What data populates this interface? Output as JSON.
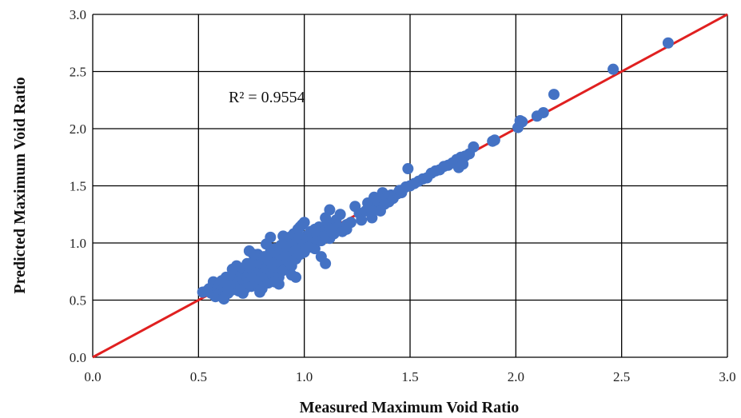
{
  "chart_data": {
    "type": "scatter",
    "xlabel": "Measured Maximum Void Ratio",
    "ylabel": "Predicted Maximum Void Ratio",
    "xlim": [
      0,
      3.0
    ],
    "ylim": [
      0,
      3.0
    ],
    "x_ticks": [
      "0.0",
      "0.5",
      "1.0",
      "1.5",
      "2.0",
      "2.5",
      "3.0"
    ],
    "y_ticks": [
      "0.0",
      "0.5",
      "1.0",
      "1.5",
      "2.0",
      "2.5",
      "3.0"
    ],
    "grid": true,
    "annotation": "R² = 0.9554",
    "reference_line": {
      "x": [
        0,
        3.0
      ],
      "y": [
        0,
        3.0
      ],
      "color": "#e02020"
    },
    "marker_color": "#4472c4",
    "series": [
      {
        "points": [
          [
            0.52,
            0.57
          ],
          [
            0.54,
            0.58
          ],
          [
            0.55,
            0.6
          ],
          [
            0.56,
            0.56
          ],
          [
            0.57,
            0.62
          ],
          [
            0.57,
            0.66
          ],
          [
            0.58,
            0.53
          ],
          [
            0.59,
            0.6
          ],
          [
            0.6,
            0.56
          ],
          [
            0.6,
            0.64
          ],
          [
            0.61,
            0.58
          ],
          [
            0.61,
            0.67
          ],
          [
            0.62,
            0.61
          ],
          [
            0.62,
            0.53
          ],
          [
            0.63,
            0.65
          ],
          [
            0.63,
            0.7
          ],
          [
            0.64,
            0.6
          ],
          [
            0.64,
            0.56
          ],
          [
            0.65,
            0.68
          ],
          [
            0.65,
            0.63
          ],
          [
            0.66,
            0.72
          ],
          [
            0.66,
            0.59
          ],
          [
            0.67,
            0.65
          ],
          [
            0.67,
            0.75
          ],
          [
            0.68,
            0.62
          ],
          [
            0.68,
            0.7
          ],
          [
            0.69,
            0.58
          ],
          [
            0.69,
            0.66
          ],
          [
            0.7,
            0.73
          ],
          [
            0.7,
            0.62
          ],
          [
            0.71,
            0.68
          ],
          [
            0.71,
            0.78
          ],
          [
            0.72,
            0.64
          ],
          [
            0.72,
            0.6
          ],
          [
            0.73,
            0.7
          ],
          [
            0.73,
            0.82
          ],
          [
            0.74,
            0.66
          ],
          [
            0.74,
            0.74
          ],
          [
            0.75,
            0.62
          ],
          [
            0.75,
            0.77
          ],
          [
            0.76,
            0.7
          ],
          [
            0.76,
            0.84
          ],
          [
            0.77,
            0.65
          ],
          [
            0.77,
            0.8
          ],
          [
            0.78,
            0.72
          ],
          [
            0.78,
            0.9
          ],
          [
            0.79,
            0.68
          ],
          [
            0.79,
            0.76
          ],
          [
            0.8,
            0.82
          ],
          [
            0.8,
            0.6
          ],
          [
            0.81,
            0.74
          ],
          [
            0.81,
            0.88
          ],
          [
            0.82,
            0.7
          ],
          [
            0.82,
            0.78
          ],
          [
            0.83,
            0.85
          ],
          [
            0.83,
            0.65
          ],
          [
            0.84,
            0.76
          ],
          [
            0.84,
            0.92
          ],
          [
            0.85,
            0.8
          ],
          [
            0.85,
            0.72
          ],
          [
            0.86,
            0.88
          ],
          [
            0.86,
            0.95
          ],
          [
            0.87,
            0.78
          ],
          [
            0.87,
            0.84
          ],
          [
            0.88,
            0.7
          ],
          [
            0.88,
            0.9
          ],
          [
            0.89,
            0.82
          ],
          [
            0.89,
            0.98
          ],
          [
            0.9,
            0.86
          ],
          [
            0.9,
            0.76
          ],
          [
            0.91,
            0.92
          ],
          [
            0.91,
            1.02
          ],
          [
            0.92,
            0.84
          ],
          [
            0.92,
            0.95
          ],
          [
            0.93,
            0.88
          ],
          [
            0.93,
            1.05
          ],
          [
            0.94,
            0.8
          ],
          [
            0.94,
            0.98
          ],
          [
            0.95,
            0.92
          ],
          [
            0.95,
            1.08
          ],
          [
            0.96,
            0.86
          ],
          [
            0.96,
            1.0
          ],
          [
            0.97,
            0.94
          ],
          [
            0.97,
            1.12
          ],
          [
            0.98,
            0.9
          ],
          [
            0.98,
            1.04
          ],
          [
            0.99,
            0.96
          ],
          [
            0.99,
            1.16
          ],
          [
            1.0,
            1.0
          ],
          [
            1.0,
            0.92
          ],
          [
            1.01,
            1.06
          ],
          [
            1.02,
            0.98
          ],
          [
            1.03,
            1.1
          ],
          [
            1.04,
            1.02
          ],
          [
            1.05,
            0.95
          ],
          [
            1.06,
            1.08
          ],
          [
            1.07,
            1.14
          ],
          [
            1.08,
            1.02
          ],
          [
            1.09,
            1.1
          ],
          [
            1.1,
            1.06
          ],
          [
            1.11,
            1.18
          ],
          [
            1.12,
            1.04
          ],
          [
            1.13,
            1.12
          ],
          [
            1.14,
            1.08
          ],
          [
            1.15,
            1.2
          ],
          [
            1.16,
            1.14
          ],
          [
            1.18,
            1.1
          ],
          [
            1.2,
            1.16
          ],
          [
            0.84,
            1.05
          ],
          [
            0.82,
            0.99
          ],
          [
            0.74,
            0.93
          ],
          [
            0.79,
            0.57
          ],
          [
            0.71,
            0.56
          ],
          [
            0.62,
            0.51
          ],
          [
            0.88,
            0.64
          ],
          [
            0.96,
            0.7
          ],
          [
            1.1,
            0.82
          ],
          [
            1.08,
            0.88
          ],
          [
            1.0,
            1.18
          ],
          [
            0.98,
            1.14
          ],
          [
            1.02,
            0.96
          ],
          [
            0.94,
            0.72
          ],
          [
            0.68,
            0.8
          ],
          [
            0.66,
            0.77
          ],
          [
            0.76,
            0.9
          ],
          [
            0.86,
            0.66
          ],
          [
            0.9,
            1.06
          ],
          [
            1.05,
            1.12
          ],
          [
            1.1,
            1.22
          ],
          [
            1.12,
            1.29
          ],
          [
            1.17,
            1.25
          ],
          [
            1.2,
            1.12
          ],
          [
            1.22,
            1.18
          ],
          [
            1.24,
            1.32
          ],
          [
            1.26,
            1.26
          ],
          [
            1.27,
            1.2
          ],
          [
            1.29,
            1.28
          ],
          [
            1.3,
            1.35
          ],
          [
            1.31,
            1.31
          ],
          [
            1.32,
            1.22
          ],
          [
            1.33,
            1.4
          ],
          [
            1.34,
            1.3
          ],
          [
            1.35,
            1.36
          ],
          [
            1.36,
            1.28
          ],
          [
            1.37,
            1.44
          ],
          [
            1.38,
            1.34
          ],
          [
            1.39,
            1.4
          ],
          [
            1.4,
            1.36
          ],
          [
            1.41,
            1.42
          ],
          [
            1.42,
            1.39
          ],
          [
            1.44,
            1.43
          ],
          [
            1.45,
            1.46
          ],
          [
            1.46,
            1.44
          ],
          [
            1.48,
            1.49
          ],
          [
            1.49,
            1.65
          ],
          [
            1.5,
            1.5
          ],
          [
            1.52,
            1.52
          ],
          [
            1.54,
            1.54
          ],
          [
            1.56,
            1.56
          ],
          [
            1.58,
            1.57
          ],
          [
            1.6,
            1.61
          ],
          [
            1.62,
            1.63
          ],
          [
            1.64,
            1.64
          ],
          [
            1.66,
            1.67
          ],
          [
            1.68,
            1.68
          ],
          [
            1.7,
            1.7
          ],
          [
            1.72,
            1.73
          ],
          [
            1.74,
            1.75
          ],
          [
            1.73,
            1.66
          ],
          [
            1.75,
            1.69
          ],
          [
            1.76,
            1.76
          ],
          [
            1.78,
            1.78
          ],
          [
            1.8,
            1.84
          ],
          [
            1.89,
            1.89
          ],
          [
            1.9,
            1.9
          ],
          [
            2.01,
            2.01
          ],
          [
            2.02,
            2.07
          ],
          [
            2.03,
            2.06
          ],
          [
            2.1,
            2.11
          ],
          [
            2.13,
            2.14
          ],
          [
            2.18,
            2.3
          ],
          [
            2.46,
            2.52
          ],
          [
            2.72,
            2.75
          ]
        ]
      }
    ]
  }
}
